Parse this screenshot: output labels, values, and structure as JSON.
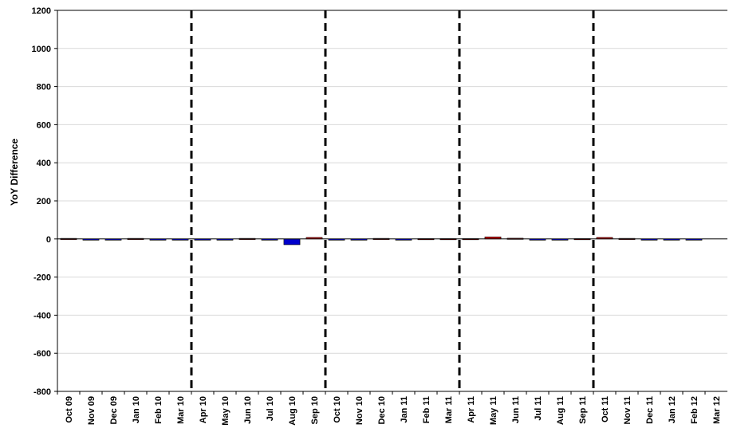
{
  "chart_data": {
    "type": "bar",
    "title": "",
    "xlabel": "",
    "ylabel": "YoY Difference",
    "ylim": [
      -800,
      1200
    ],
    "yticks": [
      1200,
      1000,
      800,
      600,
      400,
      200,
      0,
      -200,
      -400,
      -600,
      -800
    ],
    "grid": true,
    "legend": "none",
    "categories": [
      "Oct 09",
      "Nov 09",
      "Dec 09",
      "Jan 10",
      "Feb 10",
      "Mar 10",
      "Apr 10",
      "May 10",
      "Jun 10",
      "Jul 10",
      "Aug 10",
      "Sep 10",
      "Oct 10",
      "Nov 10",
      "Dec 10",
      "Jan 11",
      "Feb 11",
      "Mar 11",
      "Apr 11",
      "May 11",
      "Jun 11",
      "Jul 11",
      "Aug 11",
      "Sep 11",
      "Oct 11",
      "Nov 11",
      "Dec 11",
      "Jan 12",
      "Feb 12",
      "Mar 12"
    ],
    "values": [
      3,
      -2,
      -2,
      3,
      -2,
      -2,
      -2,
      -2,
      3,
      -3,
      -30,
      8,
      -2,
      -2,
      3,
      -2,
      2,
      2,
      2,
      11,
      4,
      -3,
      -2,
      2,
      8,
      3,
      -2,
      -2,
      -2,
      0
    ],
    "colors": {
      "positive": "#cc0000",
      "negative": "#0000cc",
      "grid": "#d9d9d9",
      "divider": "#000000"
    },
    "dividers_after": [
      "Mar 10",
      "Sep 10",
      "Mar 11",
      "Sep 11"
    ]
  }
}
